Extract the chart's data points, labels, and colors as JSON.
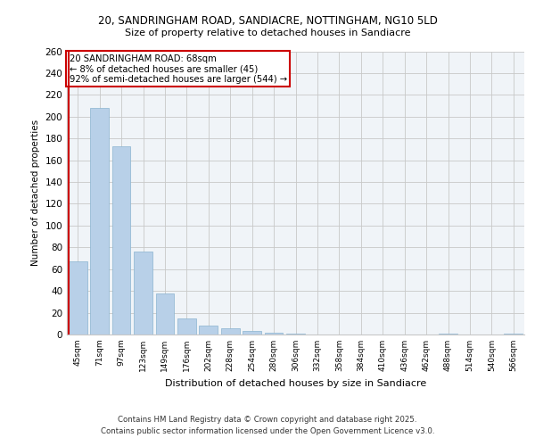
{
  "title_line1": "20, SANDRINGHAM ROAD, SANDIACRE, NOTTINGHAM, NG10 5LD",
  "title_line2": "Size of property relative to detached houses in Sandiacre",
  "xlabel": "Distribution of detached houses by size in Sandiacre",
  "ylabel": "Number of detached properties",
  "bar_color": "#b8d0e8",
  "bar_edgecolor": "#8ab4d0",
  "marker_color": "#cc0000",
  "background_color": "#f0f4f8",
  "annotation_box_color": "#cc0000",
  "bins": [
    "45sqm",
    "71sqm",
    "97sqm",
    "123sqm",
    "149sqm",
    "176sqm",
    "202sqm",
    "228sqm",
    "254sqm",
    "280sqm",
    "306sqm",
    "332sqm",
    "358sqm",
    "384sqm",
    "410sqm",
    "436sqm",
    "462sqm",
    "488sqm",
    "514sqm",
    "540sqm",
    "566sqm"
  ],
  "values": [
    67,
    208,
    173,
    76,
    38,
    15,
    8,
    6,
    3,
    2,
    1,
    0,
    0,
    0,
    0,
    0,
    0,
    1,
    0,
    0,
    1
  ],
  "annotation_title": "20 SANDRINGHAM ROAD: 68sqm",
  "annotation_line1": "← 8% of detached houses are smaller (45)",
  "annotation_line2": "92% of semi-detached houses are larger (544) →",
  "footnote1": "Contains HM Land Registry data © Crown copyright and database right 2025.",
  "footnote2": "Contains public sector information licensed under the Open Government Licence v3.0.",
  "ylim": [
    0,
    260
  ],
  "yticks": [
    0,
    20,
    40,
    60,
    80,
    100,
    120,
    140,
    160,
    180,
    200,
    220,
    240,
    260
  ]
}
